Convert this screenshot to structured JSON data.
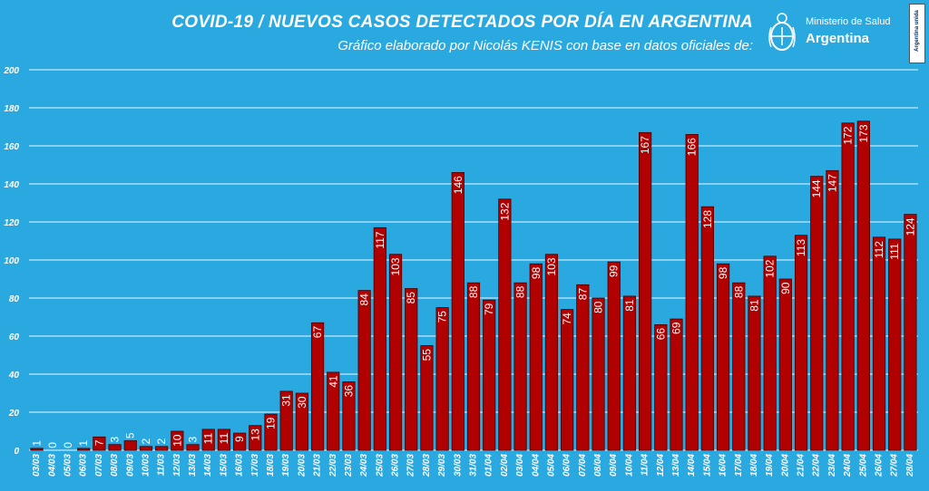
{
  "header": {
    "title": "COVID-19  /  NUEVOS CASOS DETECTADOS POR DÍA EN ARGENTINA",
    "subtitle": "Gráfico elaborado por Nicolás KENIS con base en datos oficiales de:",
    "logo_ministry": "Ministerio de Salud",
    "logo_country": "Argentina",
    "badge_text": "Argentina unida"
  },
  "colors": {
    "background": "#2aa9e0",
    "bar": "#b00000",
    "bar_border": "#4a0000",
    "grid": "#e8f6fc",
    "text": "#ffffff"
  },
  "chart_data": {
    "type": "bar",
    "title": "COVID-19  /  NUEVOS CASOS DETECTADOS POR DÍA EN ARGENTINA",
    "xlabel": "",
    "ylabel": "",
    "ylim": [
      0,
      200
    ],
    "yticks": [
      0,
      20,
      40,
      60,
      80,
      100,
      120,
      140,
      160,
      180,
      200
    ],
    "grid": true,
    "legend": "none",
    "categories": [
      "03/03",
      "04/03",
      "05/03",
      "06/03",
      "07/03",
      "08/03",
      "09/03",
      "10/03",
      "11/03",
      "12/03",
      "13/03",
      "14/03",
      "15/03",
      "16/03",
      "17/03",
      "18/03",
      "19/03",
      "20/03",
      "21/03",
      "22/03",
      "23/03",
      "24/03",
      "25/03",
      "26/03",
      "27/03",
      "28/03",
      "29/03",
      "30/03",
      "31/03",
      "01/04",
      "02/04",
      "03/04",
      "04/04",
      "05/04",
      "06/04",
      "07/04",
      "08/04",
      "09/04",
      "10/04",
      "11/04",
      "12/04",
      "13/04",
      "14/04",
      "15/04",
      "16/04",
      "17/04",
      "18/04",
      "19/04",
      "20/04",
      "21/04",
      "22/04",
      "23/04",
      "24/04",
      "25/04",
      "26/04",
      "27/04",
      "28/04"
    ],
    "values": [
      1,
      0,
      0,
      1,
      7,
      3,
      5,
      2,
      2,
      10,
      3,
      11,
      11,
      9,
      13,
      19,
      31,
      30,
      67,
      41,
      36,
      84,
      117,
      103,
      85,
      55,
      75,
      146,
      88,
      79,
      132,
      88,
      98,
      103,
      74,
      87,
      80,
      99,
      81,
      167,
      66,
      69,
      166,
      128,
      98,
      88,
      81,
      102,
      90,
      113,
      144,
      147,
      172,
      173,
      112,
      111,
      124
    ],
    "data_labels": [
      "1",
      "0",
      "0",
      "1",
      "7",
      "3",
      "5",
      "2",
      "2",
      "10",
      "3",
      "11",
      "11",
      "9",
      "13",
      "19",
      "31",
      "30",
      "67",
      "41",
      "36",
      "84",
      "117",
      "103",
      "85",
      "55",
      "75",
      "146",
      "88",
      "79",
      "132",
      "88",
      "98",
      "103",
      "74",
      "87",
      "80",
      "99",
      "81",
      "167",
      "66",
      "69",
      "166",
      "128",
      "98",
      "88",
      "81",
      "102",
      "90",
      "113",
      "144",
      "147",
      "172",
      "173",
      "112",
      "111",
      "124"
    ]
  }
}
